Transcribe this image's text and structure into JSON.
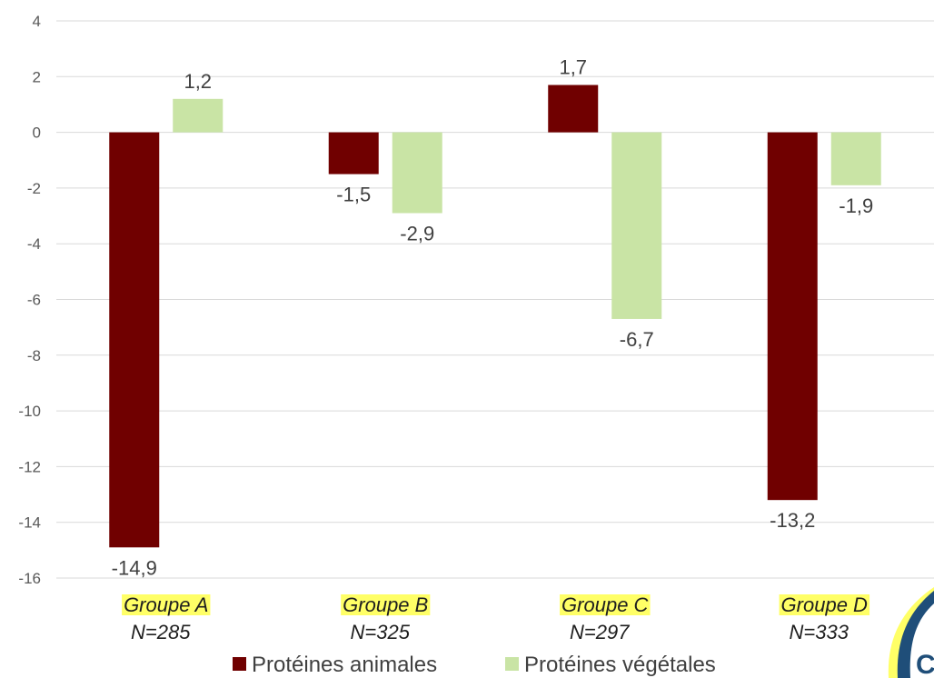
{
  "chart_data": {
    "type": "bar",
    "categories": [
      "Groupe A",
      "Groupe B",
      "Groupe C",
      "Groupe D"
    ],
    "category_sublabels": [
      "N=285",
      "N=325",
      "N=297",
      "N=333"
    ],
    "series": [
      {
        "name": "Protéines animales",
        "values": [
          -14.9,
          -1.5,
          1.7,
          -13.2
        ],
        "labels": [
          "-14,9",
          "-1,5",
          "1,7",
          "-13,2"
        ],
        "color": "#700000"
      },
      {
        "name": "Protéines végétales",
        "values": [
          1.2,
          -2.9,
          -6.7,
          -1.9
        ],
        "labels": [
          "1,2",
          "-2,9",
          "-6,7",
          "-1,9"
        ],
        "color": "#c9e4a5"
      }
    ],
    "ylim": [
      -16,
      4
    ],
    "yticks": [
      4,
      2,
      0,
      -2,
      -4,
      -6,
      -8,
      -10,
      -12,
      -14,
      -16
    ],
    "ytick_labels": [
      "4",
      "2",
      "0",
      "-2",
      "-4",
      "-6",
      "-8",
      "-10",
      "-12",
      "-14",
      "-16"
    ],
    "grid": true,
    "legend_position": "bottom",
    "highlight_color": "#ffff66",
    "gridline_color": "#d9d9d9",
    "title": "",
    "xlabel": "",
    "ylabel": ""
  },
  "corner_logo_letter": "C"
}
